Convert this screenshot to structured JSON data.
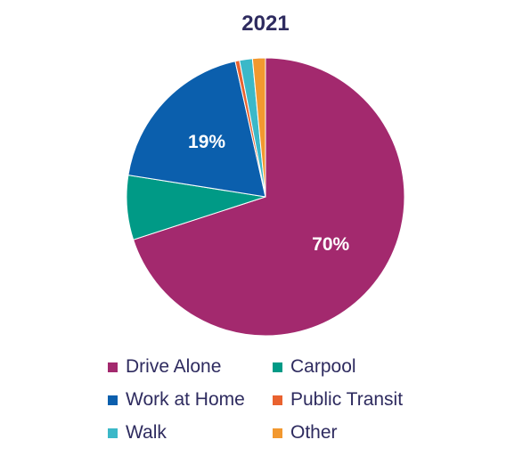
{
  "chart_data": {
    "type": "pie",
    "title": "2021",
    "categories": [
      "Drive Alone",
      "Carpool",
      "Work at Home",
      "Public Transit",
      "Walk",
      "Other"
    ],
    "values": [
      70,
      7.5,
      19,
      0.5,
      1.5,
      1.5
    ],
    "data_labels": [
      "70%",
      "",
      "19%",
      "",
      "",
      ""
    ],
    "colors": [
      "#a3296e",
      "#009a86",
      "#0b5fad",
      "#e9622f",
      "#3bb8c8",
      "#f2982f"
    ],
    "legend_position": "bottom"
  }
}
